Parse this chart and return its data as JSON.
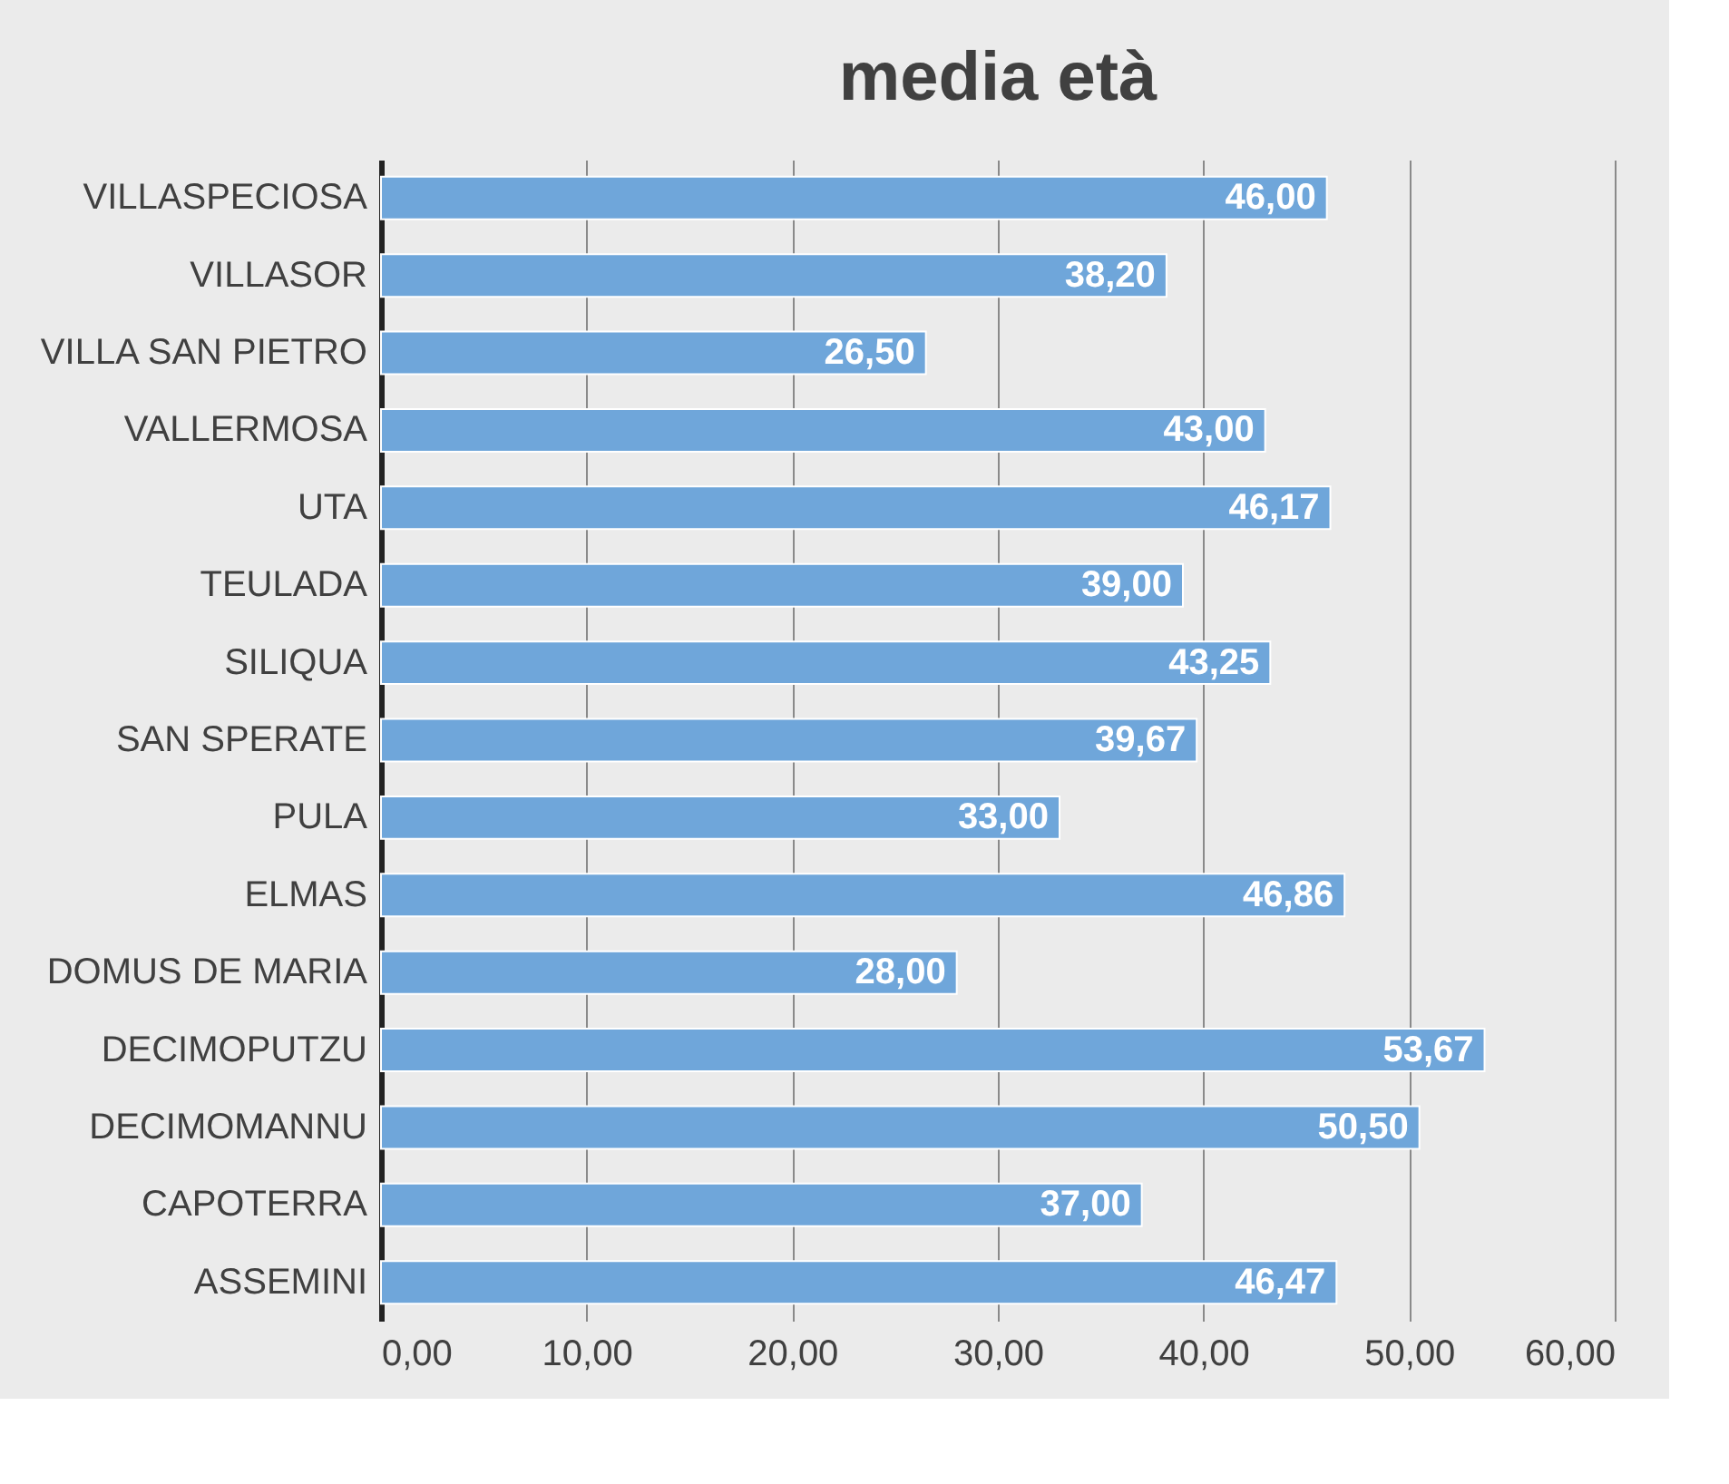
{
  "chart_data": {
    "type": "bar",
    "orientation": "horizontal",
    "title": "media età",
    "categories": [
      "VILLASPECIOSA",
      "VILLASOR",
      "VILLA SAN PIETRO",
      "VALLERMOSA",
      "UTA",
      "TEULADA",
      "SILIQUA",
      "SAN SPERATE",
      "PULA",
      "ELMAS",
      "DOMUS DE MARIA",
      "DECIMOPUTZU",
      "DECIMOMANNU",
      "CAPOTERRA",
      "ASSEMINI"
    ],
    "values": [
      46.0,
      38.2,
      26.5,
      43.0,
      46.17,
      39.0,
      43.25,
      39.67,
      33.0,
      46.86,
      28.0,
      53.67,
      50.5,
      37.0,
      46.47
    ],
    "value_labels": [
      "46,00",
      "38,20",
      "26,50",
      "43,00",
      "46,17",
      "39,00",
      "43,25",
      "39,67",
      "33,00",
      "46,86",
      "28,00",
      "53,67",
      "50,50",
      "37,00",
      "46,47"
    ],
    "color": "#6fa6da",
    "xlim": [
      0,
      60
    ],
    "xticks": [
      {
        "value": 0,
        "label": "0,00"
      },
      {
        "value": 10,
        "label": "10,00"
      },
      {
        "value": 20,
        "label": "20,00"
      },
      {
        "value": 30,
        "label": "30,00"
      },
      {
        "value": 40,
        "label": "40,00"
      },
      {
        "value": 50,
        "label": "50,00"
      },
      {
        "value": 60,
        "label": "60,00"
      }
    ],
    "grid": "x"
  }
}
